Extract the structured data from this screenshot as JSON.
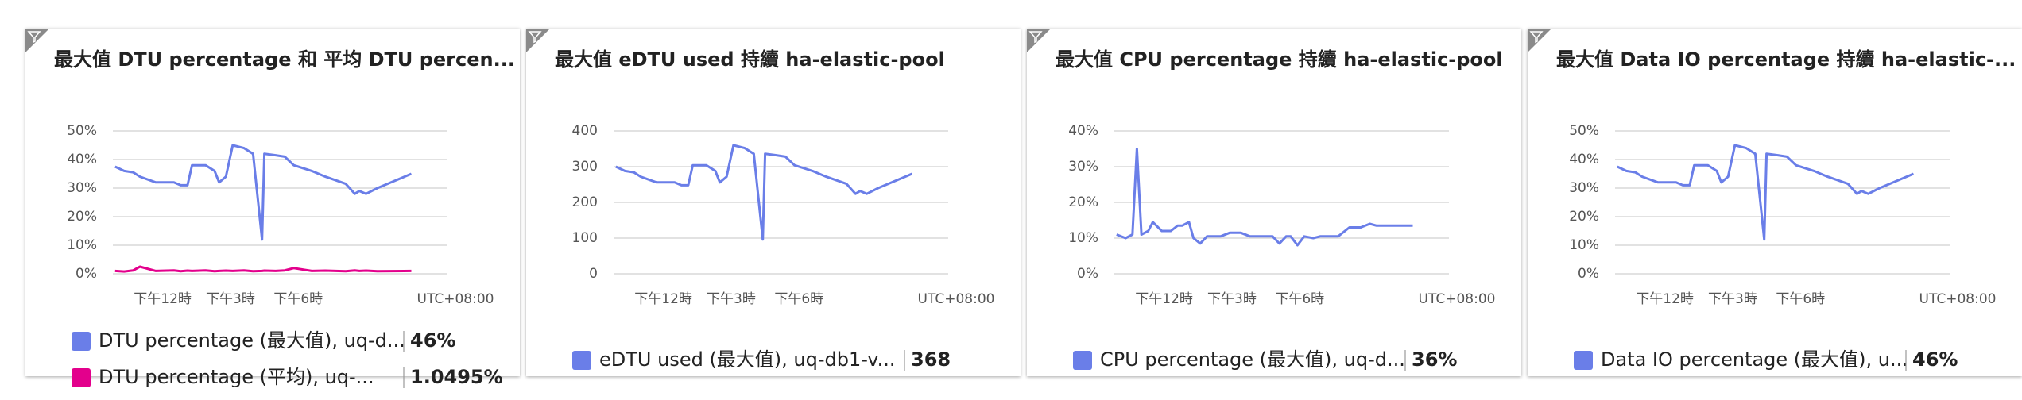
{
  "chart_data": [
    {
      "type": "line",
      "title": "最大值 DTU percentage 和 平均 DTU percen...",
      "x": [
        9.9,
        10.3,
        10.7,
        11.0,
        11.7,
        12.5,
        12.8,
        13.1,
        13.3,
        13.9,
        14.3,
        14.5,
        14.8,
        15.1,
        15.6,
        16.0,
        16.4,
        16.5,
        17.0,
        17.4,
        17.8,
        18.6,
        19.2,
        20.1,
        20.5,
        20.7,
        21.0,
        21.5,
        23.0
      ],
      "xlim": [
        9.8,
        24.6
      ],
      "xticks": [
        {
          "value": 12,
          "label": "下午12時"
        },
        {
          "value": 15,
          "label": "下午3時"
        },
        {
          "value": 18,
          "label": "下午6時"
        }
      ],
      "xlabel": "UTC+08:00",
      "ylim": [
        0,
        50
      ],
      "yticks": [
        {
          "value": 0,
          "label": "0%"
        },
        {
          "value": 10,
          "label": "10%"
        },
        {
          "value": 20,
          "label": "20%"
        },
        {
          "value": 30,
          "label": "30%"
        },
        {
          "value": 40,
          "label": "40%"
        },
        {
          "value": 50,
          "label": "50%"
        }
      ],
      "grid": true,
      "series": [
        {
          "name": "DTU percentage (最大值), uq-d...",
          "color": "#6a7ee8",
          "summary": "46%",
          "values": [
            37.5,
            36,
            35.5,
            34,
            32,
            32,
            31,
            31,
            38,
            38,
            36,
            32,
            34,
            45,
            44,
            42,
            12,
            42,
            41.5,
            41,
            38,
            36,
            34,
            31.5,
            28,
            29,
            28,
            30,
            35
          ]
        },
        {
          "name": "DTU percentage (平均), uq-...",
          "color": "#e3008c",
          "summary": "1.0495%",
          "values": [
            1,
            0.8,
            1.2,
            2.5,
            1,
            1.2,
            0.9,
            1.1,
            1,
            1.2,
            0.9,
            1,
            1.1,
            1,
            1.2,
            0.9,
            1,
            1.1,
            1,
            1.2,
            2,
            1,
            1.1,
            0.9,
            1.2,
            1,
            1.1,
            0.9,
            1
          ]
        }
      ]
    },
    {
      "type": "line",
      "title": "最大值 eDTU used 持續 ha-elastic-pool",
      "x": [
        9.9,
        10.3,
        10.7,
        11.0,
        11.7,
        12.5,
        12.8,
        13.1,
        13.3,
        13.9,
        14.3,
        14.5,
        14.8,
        15.1,
        15.6,
        16.0,
        16.4,
        16.5,
        17.0,
        17.4,
        17.8,
        18.6,
        19.2,
        20.1,
        20.5,
        20.7,
        21.0,
        21.5,
        23.0
      ],
      "xlim": [
        9.8,
        24.6
      ],
      "xticks": [
        {
          "value": 12,
          "label": "下午12時"
        },
        {
          "value": 15,
          "label": "下午3時"
        },
        {
          "value": 18,
          "label": "下午6時"
        }
      ],
      "xlabel": "UTC+08:00",
      "ylim": [
        0,
        400
      ],
      "yticks": [
        0,
        100,
        200,
        300,
        400
      ],
      "grid": true,
      "series": [
        {
          "name": "eDTU used (最大值), uq-db1-v...",
          "color": "#6a7ee8",
          "summary": "368",
          "values": [
            300,
            288,
            284,
            272,
            256,
            256,
            248,
            248,
            304,
            304,
            288,
            256,
            272,
            360,
            352,
            336,
            96,
            336,
            332,
            328,
            304,
            288,
            272,
            252,
            224,
            232,
            224,
            240,
            280
          ]
        }
      ]
    },
    {
      "type": "line",
      "title": "最大值 CPU percentage 持續 ha-elastic-pool",
      "x": [
        9.9,
        10.3,
        10.6,
        10.8,
        11.0,
        11.3,
        11.5,
        11.9,
        12.3,
        12.6,
        12.8,
        13.1,
        13.3,
        13.6,
        13.9,
        14.5,
        14.9,
        15.4,
        15.8,
        16.8,
        17.1,
        17.4,
        17.6,
        17.9,
        18.2,
        18.6,
        18.9,
        19.7,
        20.2,
        20.7,
        21.1,
        21.4,
        23.0
      ],
      "xlim": [
        9.8,
        24.6
      ],
      "xticks": [
        {
          "value": 12,
          "label": "下午12時"
        },
        {
          "value": 15,
          "label": "下午3時"
        },
        {
          "value": 18,
          "label": "下午6時"
        }
      ],
      "xlabel": "UTC+08:00",
      "ylim": [
        0,
        40
      ],
      "yticks": [
        {
          "value": 0,
          "label": "0%"
        },
        {
          "value": 10,
          "label": "10%"
        },
        {
          "value": 20,
          "label": "20%"
        },
        {
          "value": 30,
          "label": "30%"
        },
        {
          "value": 40,
          "label": "40%"
        }
      ],
      "grid": true,
      "series": [
        {
          "name": "CPU percentage (最大值), uq-d...",
          "color": "#6a7ee8",
          "summary": "36%",
          "values": [
            11,
            10,
            11,
            35,
            11,
            12,
            14.5,
            12,
            12,
            13.5,
            13.5,
            14.5,
            10,
            8.5,
            10.5,
            10.5,
            11.5,
            11.5,
            10.5,
            10.5,
            8.5,
            10.5,
            10.5,
            8,
            10.5,
            10,
            10.5,
            10.5,
            13,
            13,
            14,
            13.5,
            13.5
          ]
        }
      ]
    },
    {
      "type": "line",
      "title": "最大值 Data IO percentage 持續 ha-elastic-...",
      "x": [
        9.9,
        10.3,
        10.7,
        11.0,
        11.7,
        12.5,
        12.8,
        13.1,
        13.3,
        13.9,
        14.3,
        14.5,
        14.8,
        15.1,
        15.6,
        16.0,
        16.4,
        16.5,
        17.0,
        17.4,
        17.8,
        18.6,
        19.2,
        20.1,
        20.5,
        20.7,
        21.0,
        21.5,
        23.0
      ],
      "xlim": [
        9.8,
        24.6
      ],
      "xticks": [
        {
          "value": 12,
          "label": "下午12時"
        },
        {
          "value": 15,
          "label": "下午3時"
        },
        {
          "value": 18,
          "label": "下午6時"
        }
      ],
      "xlabel": "UTC+08:00",
      "ylim": [
        0,
        50
      ],
      "yticks": [
        {
          "value": 0,
          "label": "0%"
        },
        {
          "value": 10,
          "label": "10%"
        },
        {
          "value": 20,
          "label": "20%"
        },
        {
          "value": 30,
          "label": "30%"
        },
        {
          "value": 40,
          "label": "40%"
        },
        {
          "value": 50,
          "label": "50%"
        }
      ],
      "grid": true,
      "series": [
        {
          "name": "Data IO percentage (最大值), u...",
          "color": "#6a7ee8",
          "summary": "46%",
          "values": [
            37.5,
            36,
            35.5,
            34,
            32,
            32,
            31,
            31,
            38,
            38,
            36,
            32,
            34,
            45,
            44,
            42,
            12,
            42,
            41.5,
            41,
            38,
            36,
            34,
            31.5,
            28,
            29,
            28,
            30,
            35
          ]
        }
      ]
    }
  ]
}
